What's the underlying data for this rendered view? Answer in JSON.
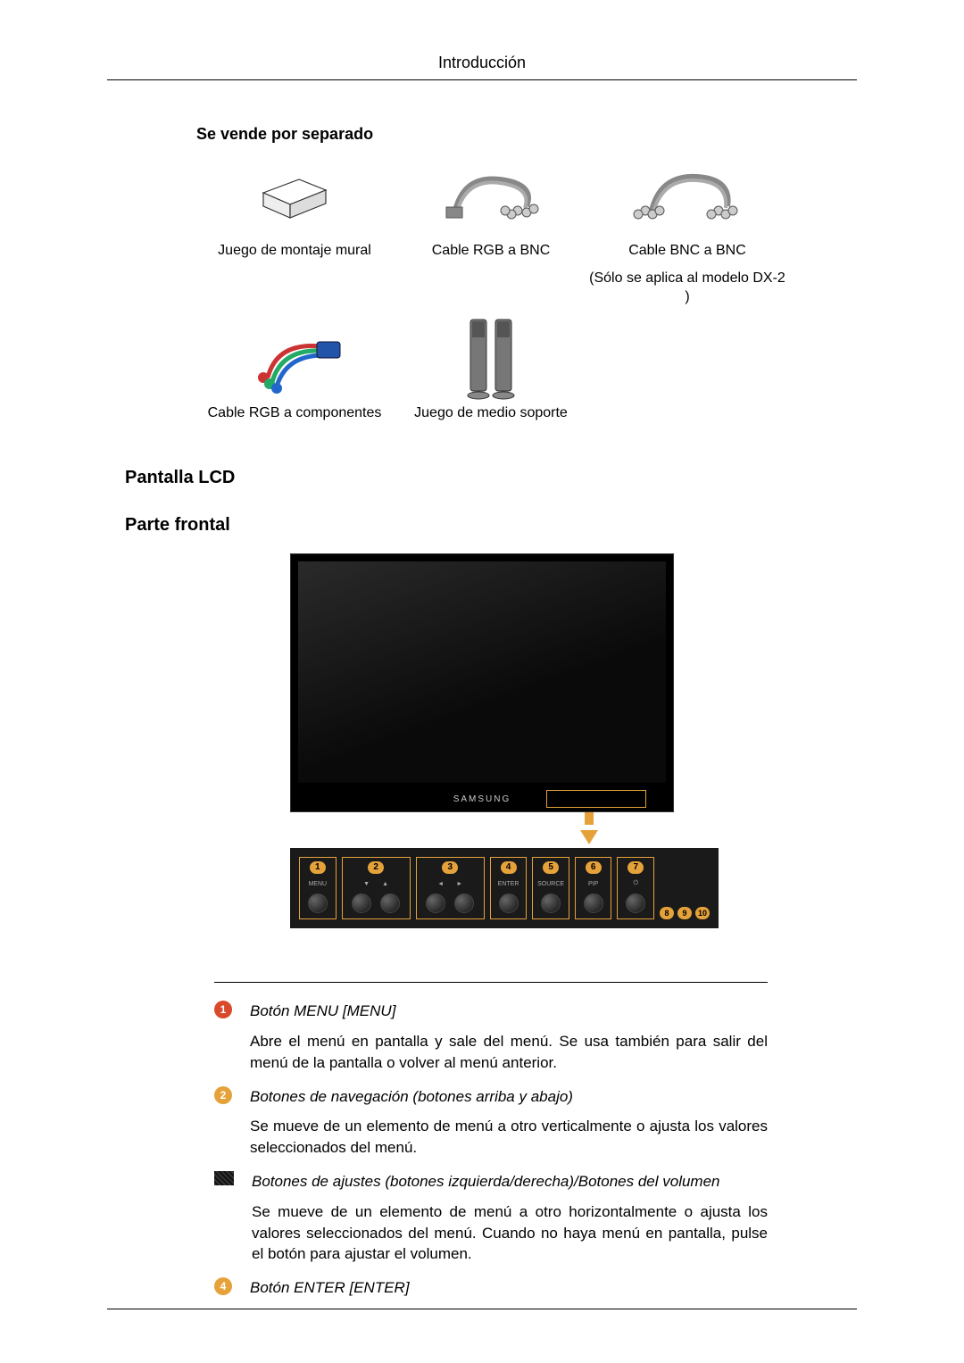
{
  "header": {
    "title": "Introducción"
  },
  "section1": {
    "heading": "Se vende por separado",
    "items": [
      {
        "caption": "Juego de montaje mural",
        "sub": ""
      },
      {
        "caption": "Cable RGB a BNC",
        "sub": ""
      },
      {
        "caption": "Cable BNC a BNC",
        "sub": "(Sólo se aplica al modelo DX-2 )"
      },
      {
        "caption": "Cable RGB a compo­nentes",
        "sub": ""
      },
      {
        "caption": "Juego de medio soporte",
        "sub": ""
      }
    ]
  },
  "h2a": "Pantalla LCD",
  "h2b": "Parte frontal",
  "lcd": {
    "logo": "SAMSUNG",
    "buttons": [
      {
        "num": "1",
        "labels": [
          "MENU"
        ],
        "knobs": 1
      },
      {
        "num": "2",
        "labels": [
          "▼",
          "▲"
        ],
        "knobs": 2
      },
      {
        "num": "3",
        "labels": [
          "◄",
          "►"
        ],
        "knobs": 2
      },
      {
        "num": "4",
        "labels": [
          "ENTER"
        ],
        "knobs": 1
      },
      {
        "num": "5",
        "labels": [
          "SOURCE"
        ],
        "knobs": 1
      },
      {
        "num": "6",
        "labels": [
          "PIP"
        ],
        "knobs": 1
      },
      {
        "num": "7",
        "labels": [
          "⏻"
        ],
        "knobs": 1
      }
    ],
    "side_nums": [
      "8",
      "9",
      "10"
    ]
  },
  "descriptions": [
    {
      "num": "1",
      "color": "#d94a2b",
      "title": "Botón MENU [MENU]",
      "body": "Abre el menú en pantalla y sale del menú. Se usa también para salir del menú de la pantalla o volver al menú anterior."
    },
    {
      "num": "2",
      "color": "#e5a23a",
      "title": "Botones de navegación (botones arriba y abajo)",
      "body": "Se mueve de un elemento de menú a otro verticalmente o ajusta los val­ores seleccionados del menú."
    },
    {
      "num": "",
      "color": "#2a2a2a",
      "pixel": true,
      "title": "Botones de ajustes (botones izquierda/derecha)/Botones del volumen",
      "body": "Se mueve de un elemento de menú a otro horizontalmente o ajusta los valores seleccionados del menú. Cuando no haya menú en pantalla, pulse el botón para ajustar el volumen."
    },
    {
      "num": "4",
      "color": "#e5a23a",
      "title": "Botón ENTER [ENTER]",
      "body": ""
    }
  ]
}
